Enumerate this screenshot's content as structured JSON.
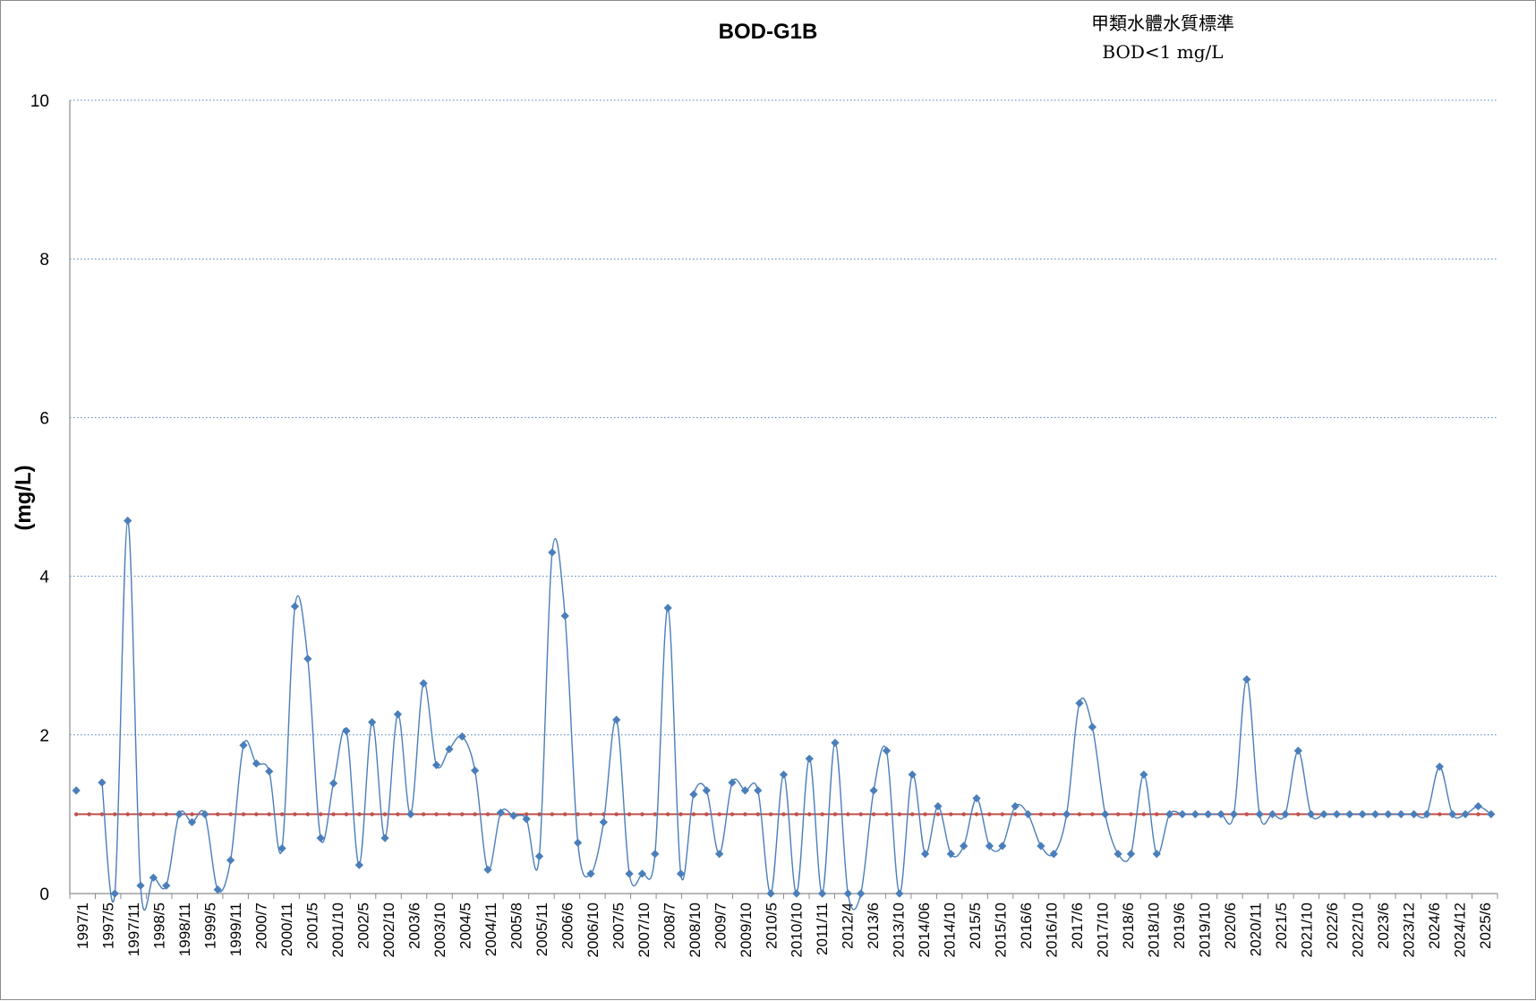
{
  "chart_data": {
    "type": "line",
    "title": "BOD-G1B",
    "annotation_lines": [
      "甲類水體水質標準",
      "BOD<1 mg/L"
    ],
    "ylabel": "(mg/L)",
    "xlabel": "",
    "ylim": [
      0,
      10
    ],
    "y_ticks": [
      0,
      2,
      4,
      6,
      8,
      10
    ],
    "x_tick_labels": [
      "1997/1",
      "1997/5",
      "1997/11",
      "1998/5",
      "1998/11",
      "1999/5",
      "1999/11",
      "2000/7",
      "2000/11",
      "2001/5",
      "2001/10",
      "2002/5",
      "2002/10",
      "2003/6",
      "2003/10",
      "2004/5",
      "2004/11",
      "2005/8",
      "2005/11",
      "2006/6",
      "2006/10",
      "2007/5",
      "2007/10",
      "2008/7",
      "2008/10",
      "2009/7",
      "2009/10",
      "2010/5",
      "2010/10",
      "2011/11",
      "2012/4",
      "2013/6",
      "2013/10",
      "2014/06",
      "2014/10",
      "2015/5",
      "2015/10",
      "2016/6",
      "2016/10",
      "2017/6",
      "2017/10",
      "2018/6",
      "2018/10",
      "2019/6",
      "2019/10",
      "2020/6",
      "2020/11",
      "2021/5",
      "2021/10",
      "2022/6",
      "2022/10",
      "2023/6",
      "2023/12",
      "2024/6",
      "2024/12",
      "2025/6"
    ],
    "grid": "horizontal-dotted",
    "legend": "none",
    "series": [
      {
        "color": "#4a7ebb",
        "marker": "diamond",
        "smooth": true,
        "values": [
          1.3,
          null,
          1.4,
          0,
          4.7,
          0.1,
          0.2,
          0.1,
          1.0,
          0.9,
          1.0,
          0.05,
          0.42,
          1.87,
          1.64,
          1.54,
          0.57,
          3.62,
          2.96,
          0.7,
          1.39,
          2.05,
          0.36,
          2.16,
          0.7,
          2.26,
          1.0,
          2.65,
          1.62,
          1.82,
          1.98,
          1.55,
          0.3,
          1.02,
          0.98,
          0.94,
          0.47,
          4.3,
          3.5,
          0.64,
          0.25,
          0.9,
          2.19,
          0.25,
          0.25,
          0.5,
          3.6,
          0.25,
          1.25,
          1.3,
          0.5,
          1.4,
          1.3,
          1.3,
          0,
          1.5,
          0,
          1.7,
          0,
          1.9,
          0,
          0,
          1.3,
          1.8,
          0,
          1.5,
          0.5,
          1.1,
          0.5,
          0.6,
          1.2,
          0.6,
          0.6,
          1.1,
          1.0,
          0.6,
          0.5,
          1.0,
          2.4,
          2.1,
          1.0,
          0.5,
          0.5,
          1.5,
          0.5,
          1.0,
          1.0,
          1.0,
          1.0,
          1.0,
          1.0,
          2.7,
          1.0,
          1.0,
          1.0,
          1.8,
          1.0,
          1.0,
          1.0,
          1.0,
          1.0,
          1.0,
          1.0,
          1.0,
          1.0,
          1.0,
          1.6,
          1.0,
          1.0,
          1.1,
          1.0
        ]
      },
      {
        "color": "#c0504d",
        "marker": "dot",
        "smooth": false,
        "constant": 1.0
      }
    ]
  }
}
